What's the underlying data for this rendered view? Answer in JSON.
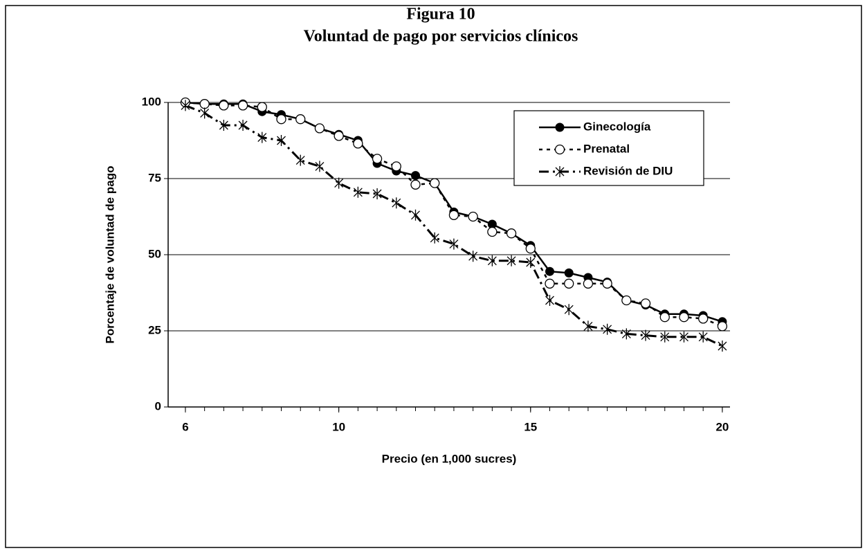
{
  "chart_data": {
    "type": "line",
    "title": "Figura 10",
    "subtitle": "Voluntad de pago por servicios clínicos",
    "x_label": "Precio (en 1,000 sucres)",
    "y_label": "Porcentaje de voluntad de pago",
    "x": [
      6,
      6.5,
      7,
      7.5,
      8,
      8.5,
      9,
      9.5,
      10,
      10.5,
      11,
      11.5,
      12,
      12.5,
      13,
      13.5,
      14,
      14.5,
      15,
      15.5,
      16,
      16.5,
      17,
      17.5,
      18,
      18.5,
      19,
      19.5,
      20
    ],
    "series": [
      {
        "name": "Ginecología",
        "color": "#000000",
        "values": [
          100,
          99.5,
          99.5,
          99.5,
          97,
          96,
          94.5,
          91.5,
          89.5,
          87.5,
          80,
          77.5,
          76,
          73.5,
          64,
          62.5,
          60,
          57,
          53,
          44.5,
          44,
          42.5,
          41,
          35,
          33.5,
          30.5,
          30.5,
          30,
          28
        ]
      },
      {
        "name": "Prenatal",
        "color": "#000000",
        "values": [
          100,
          99.5,
          99,
          99,
          98.5,
          94.5,
          94.5,
          91.5,
          89,
          86.5,
          81.5,
          79,
          73,
          73.5,
          63,
          62.5,
          57.5,
          57,
          52,
          40.5,
          40.5,
          40.5,
          40.5,
          35,
          34,
          29.5,
          29.5,
          29,
          26.5
        ]
      },
      {
        "name": "Revisión de DIU",
        "color": "#000000",
        "values": [
          99,
          96.5,
          92.5,
          92.5,
          88.5,
          87.5,
          81,
          79,
          73.5,
          70.5,
          70,
          67,
          63,
          55.5,
          53.5,
          49.5,
          48,
          48,
          47.5,
          35,
          32,
          26.5,
          25.5,
          24,
          23.5,
          23,
          23,
          23,
          20
        ]
      }
    ],
    "xlim": [
      5.55,
      20.2
    ],
    "xticks": [
      6,
      10,
      15,
      20
    ],
    "ylim": [
      0,
      100
    ],
    "yticks": [
      0,
      25,
      50,
      75,
      100
    ],
    "grid": true,
    "legend": "upper right"
  }
}
